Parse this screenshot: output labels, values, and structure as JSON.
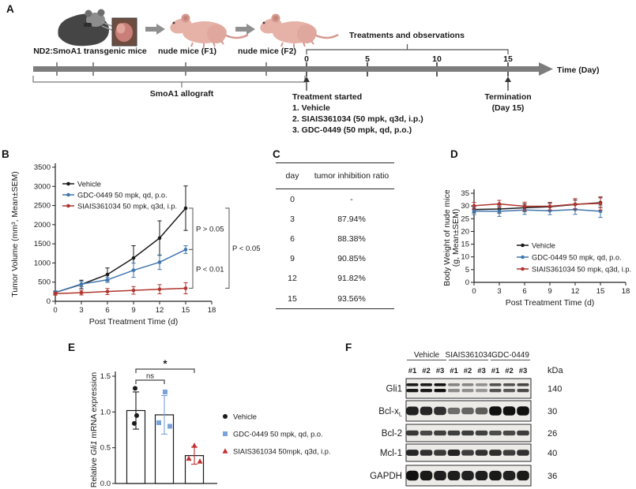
{
  "panelA": {
    "label": "A",
    "stage_labels": [
      "ND2:SmoA1 transgenic mice",
      "nude mice (F1)",
      "nude mice (F2)"
    ],
    "treatments_bracket_label": "Treatments and observations",
    "day_ticks": [
      "0",
      "5",
      "10",
      "15"
    ],
    "time_axis_label": "Time (Day)",
    "allograft_label": "SmoA1 allograft",
    "treatment_lines": [
      "Treatment started",
      "1. Vehicle",
      "2. SIAIS361034 (50 mpk, q3d, i.p.)",
      "3. GDC-0449 (50 mpk, qd, p.o.)"
    ],
    "termination_lines": [
      "Termination",
      "(Day 15)"
    ]
  },
  "panelB": {
    "label": "B",
    "chart_data": {
      "type": "line",
      "x": [
        0,
        3,
        6,
        9,
        12,
        15
      ],
      "xlabel": "Post Treatment Time (d)",
      "ylabel": "Tumor Volume (mm³, Mean±SEM)",
      "xlim": [
        0,
        18
      ],
      "ylim": [
        0,
        3500
      ],
      "xticks": [
        0,
        3,
        6,
        9,
        12,
        15,
        18
      ],
      "yticks": [
        0,
        500,
        1000,
        1500,
        2000,
        2500,
        3000,
        3500
      ],
      "series": [
        {
          "name": "Vehicle",
          "color": "#1a1a1a",
          "values": [
            230,
            440,
            700,
            1130,
            1650,
            2430
          ],
          "errors": [
            40,
            110,
            170,
            320,
            450,
            580
          ]
        },
        {
          "name": "GDC-0449 50 mpk, qd, p.o.",
          "color": "#3f76ae",
          "values": [
            230,
            450,
            560,
            810,
            1020,
            1350
          ],
          "errors": [
            40,
            70,
            70,
            185,
            190,
            100
          ]
        },
        {
          "name": "SIAIS361034 50 mpk, q3d, i.p.",
          "color": "#b0342e",
          "values": [
            200,
            225,
            255,
            285,
            315,
            340
          ],
          "errors": [
            40,
            60,
            80,
            100,
            120,
            145
          ]
        }
      ],
      "annotations": [
        {
          "label": "P > 0.05"
        },
        {
          "label": "P < 0.01"
        },
        {
          "label": "P < 0.05"
        }
      ]
    }
  },
  "panelC": {
    "label": "C",
    "table": {
      "headers": [
        "day",
        "tumor inhibition ratio"
      ],
      "rows": [
        [
          "0",
          "-"
        ],
        [
          "3",
          "87.94%"
        ],
        [
          "6",
          "88.38%"
        ],
        [
          "9",
          "90.85%"
        ],
        [
          "12",
          "91.82%"
        ],
        [
          "15",
          "93.56%"
        ]
      ]
    }
  },
  "panelD": {
    "label": "D",
    "chart_data": {
      "type": "line",
      "x": [
        0,
        3,
        6,
        9,
        12,
        15
      ],
      "xlabel": "Post Treatment Time (d)",
      "ylabel": [
        "Body Weight of nude mice",
        "(g, Mean±SEM)"
      ],
      "xlim": [
        0,
        18
      ],
      "ylim": [
        0,
        35
      ],
      "xticks": [
        0,
        3,
        6,
        9,
        12,
        15,
        18
      ],
      "yticks": [
        0,
        5,
        10,
        15,
        20,
        25,
        30,
        35
      ],
      "series": [
        {
          "name": "Vehicle",
          "color": "#1a1a1a",
          "values": [
            28.6,
            28.8,
            29.3,
            29.7,
            30.6,
            31.3
          ],
          "errors": [
            1.3,
            1.6,
            1.5,
            1.4,
            1.7,
            1.9
          ]
        },
        {
          "name": "GDC-0449 50 mpk, qd, p.o.",
          "color": "#3f76ae",
          "values": [
            28.0,
            27.9,
            28.4,
            28.1,
            28.6,
            27.9
          ],
          "errors": [
            1.4,
            2.0,
            1.7,
            1.5,
            1.9,
            2.4
          ]
        },
        {
          "name": "SIAIS361034 50 mpk, q3d, i.p.",
          "color": "#b0342e",
          "values": [
            30.1,
            30.8,
            29.9,
            29.9,
            30.7,
            31.0
          ],
          "errors": [
            1.3,
            1.4,
            1.6,
            1.5,
            2.2,
            2.6
          ]
        }
      ]
    }
  },
  "panelE": {
    "label": "E",
    "chart_data": {
      "type": "bar",
      "categories": [
        "Vehicle",
        "GDC-0449 50 mpk, qd, p.o.",
        "SIAIS361034 50mpk, q3d, i.p."
      ],
      "values": [
        1.02,
        0.96,
        0.39
      ],
      "errors": [
        0.26,
        0.27,
        0.12
      ],
      "points": [
        [
          1.33,
          0.95,
          0.84
        ],
        [
          1.28,
          0.85,
          0.8
        ],
        [
          0.53,
          0.35,
          0.31
        ]
      ],
      "ylabel_parts": [
        "Relative ",
        "Gli1",
        " mRNA expression"
      ],
      "ylim": [
        0,
        1.5
      ],
      "yticks": [
        "0.0",
        "0.5",
        "1.0",
        "1.5"
      ],
      "sig": [
        {
          "from": 0,
          "to": 1,
          "label": "ns"
        },
        {
          "from": 0,
          "to": 2,
          "label": "*"
        }
      ],
      "legend": [
        {
          "label": "Vehicle",
          "marker": "circle",
          "color": "#1a1a1a"
        },
        {
          "label": "GDC-0449 50 mpk, qd, p.o.",
          "marker": "square",
          "color": "#7aa3db"
        },
        {
          "label": "SIAIS361034 50mpk, q3d, i.p.",
          "marker": "triangle",
          "color": "#c53030"
        }
      ]
    }
  },
  "panelF": {
    "label": "F",
    "blot": {
      "groups": [
        "Vehicle",
        "SIAIS361034",
        "GDC-0449"
      ],
      "lanes": [
        "#1",
        "#2",
        "#3",
        "#1",
        "#2",
        "#3",
        "#1",
        "#2",
        "#3"
      ],
      "unit": "kDa",
      "rows": [
        {
          "protein": "Gli1",
          "kda": "140",
          "style": "double",
          "intensity": [
            0.95,
            0.95,
            1,
            0.3,
            0.28,
            0.22,
            0.62,
            0.6,
            0.68
          ]
        },
        {
          "protein": "Bcl-x",
          "sub": "L",
          "kda": "30",
          "bandH": 11,
          "intensity": [
            0.9,
            0.85,
            0.8,
            0.4,
            0.45,
            0.5,
            1,
            1,
            1
          ]
        },
        {
          "protein": "Bcl-2",
          "kda": "26",
          "bandH": 7,
          "intensity": [
            0.75,
            0.65,
            0.7,
            0.7,
            0.72,
            0.68,
            0.62,
            0.65,
            0.72
          ]
        },
        {
          "protein": "Mcl-1",
          "kda": "40",
          "bandH": 8,
          "intensity": [
            0.85,
            0.8,
            0.75,
            0.88,
            0.72,
            0.78,
            0.82,
            0.72,
            0.78
          ]
        },
        {
          "protein": "GAPDH",
          "kda": "36",
          "bandH": 12,
          "intensity": [
            1,
            0.95,
            0.92,
            0.92,
            0.9,
            0.92,
            0.95,
            0.9,
            0.95
          ]
        }
      ]
    }
  }
}
